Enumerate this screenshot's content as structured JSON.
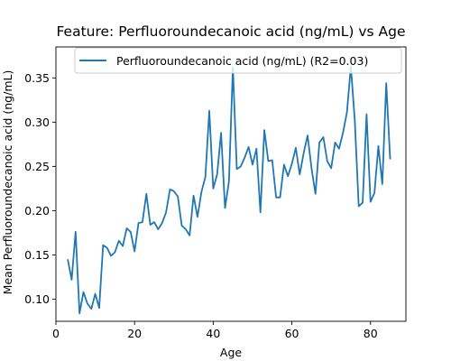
{
  "chart_data": {
    "type": "line",
    "title": "Feature: Perfluoroundecanoic acid (ng/mL) vs Age",
    "xlabel": "Age",
    "ylabel": "Mean Perfluoroundecanoic acid (ng/mL)",
    "xlim": [
      0,
      89
    ],
    "ylim": [
      0.075,
      0.385
    ],
    "xticks": [
      0,
      20,
      40,
      60,
      80
    ],
    "yticks": [
      0.1,
      0.15,
      0.2,
      0.25,
      0.3,
      0.35
    ],
    "xtick_labels": [
      "0",
      "20",
      "40",
      "60",
      "80"
    ],
    "ytick_labels": [
      "0.10",
      "0.15",
      "0.20",
      "0.25",
      "0.30",
      "0.35"
    ],
    "grid": false,
    "legend_position": "top-right",
    "series": [
      {
        "name": "Perfluoroundecanoic acid (ng/mL) (R2=0.03)",
        "color": "#1f77b4",
        "x": [
          3,
          4,
          5,
          6,
          7,
          8,
          9,
          10,
          11,
          12,
          13,
          14,
          15,
          16,
          17,
          18,
          19,
          20,
          21,
          22,
          23,
          24,
          25,
          26,
          27,
          28,
          29,
          30,
          31,
          32,
          33,
          34,
          35,
          36,
          37,
          38,
          39,
          40,
          41,
          42,
          43,
          44,
          45,
          46,
          47,
          48,
          49,
          50,
          51,
          52,
          53,
          54,
          55,
          56,
          57,
          58,
          59,
          60,
          61,
          62,
          63,
          64,
          65,
          66,
          67,
          68,
          69,
          70,
          71,
          72,
          73,
          74,
          75,
          76,
          77,
          78,
          79,
          80,
          81,
          82,
          83,
          84,
          85
        ],
        "y": [
          0.145,
          0.122,
          0.176,
          0.084,
          0.108,
          0.095,
          0.089,
          0.106,
          0.09,
          0.161,
          0.158,
          0.149,
          0.153,
          0.166,
          0.16,
          0.18,
          0.176,
          0.154,
          0.186,
          0.187,
          0.219,
          0.184,
          0.187,
          0.179,
          0.186,
          0.198,
          0.224,
          0.222,
          0.216,
          0.183,
          0.179,
          0.172,
          0.217,
          0.193,
          0.221,
          0.238,
          0.313,
          0.225,
          0.241,
          0.288,
          0.203,
          0.233,
          0.362,
          0.247,
          0.25,
          0.26,
          0.272,
          0.252,
          0.27,
          0.198,
          0.291,
          0.256,
          0.257,
          0.215,
          0.215,
          0.252,
          0.239,
          0.253,
          0.271,
          0.241,
          0.265,
          0.285,
          0.248,
          0.219,
          0.277,
          0.283,
          0.256,
          0.248,
          0.277,
          0.27,
          0.288,
          0.311,
          0.363,
          0.302,
          0.205,
          0.209,
          0.309,
          0.21,
          0.22,
          0.273,
          0.23,
          0.344,
          0.258
        ]
      }
    ]
  }
}
